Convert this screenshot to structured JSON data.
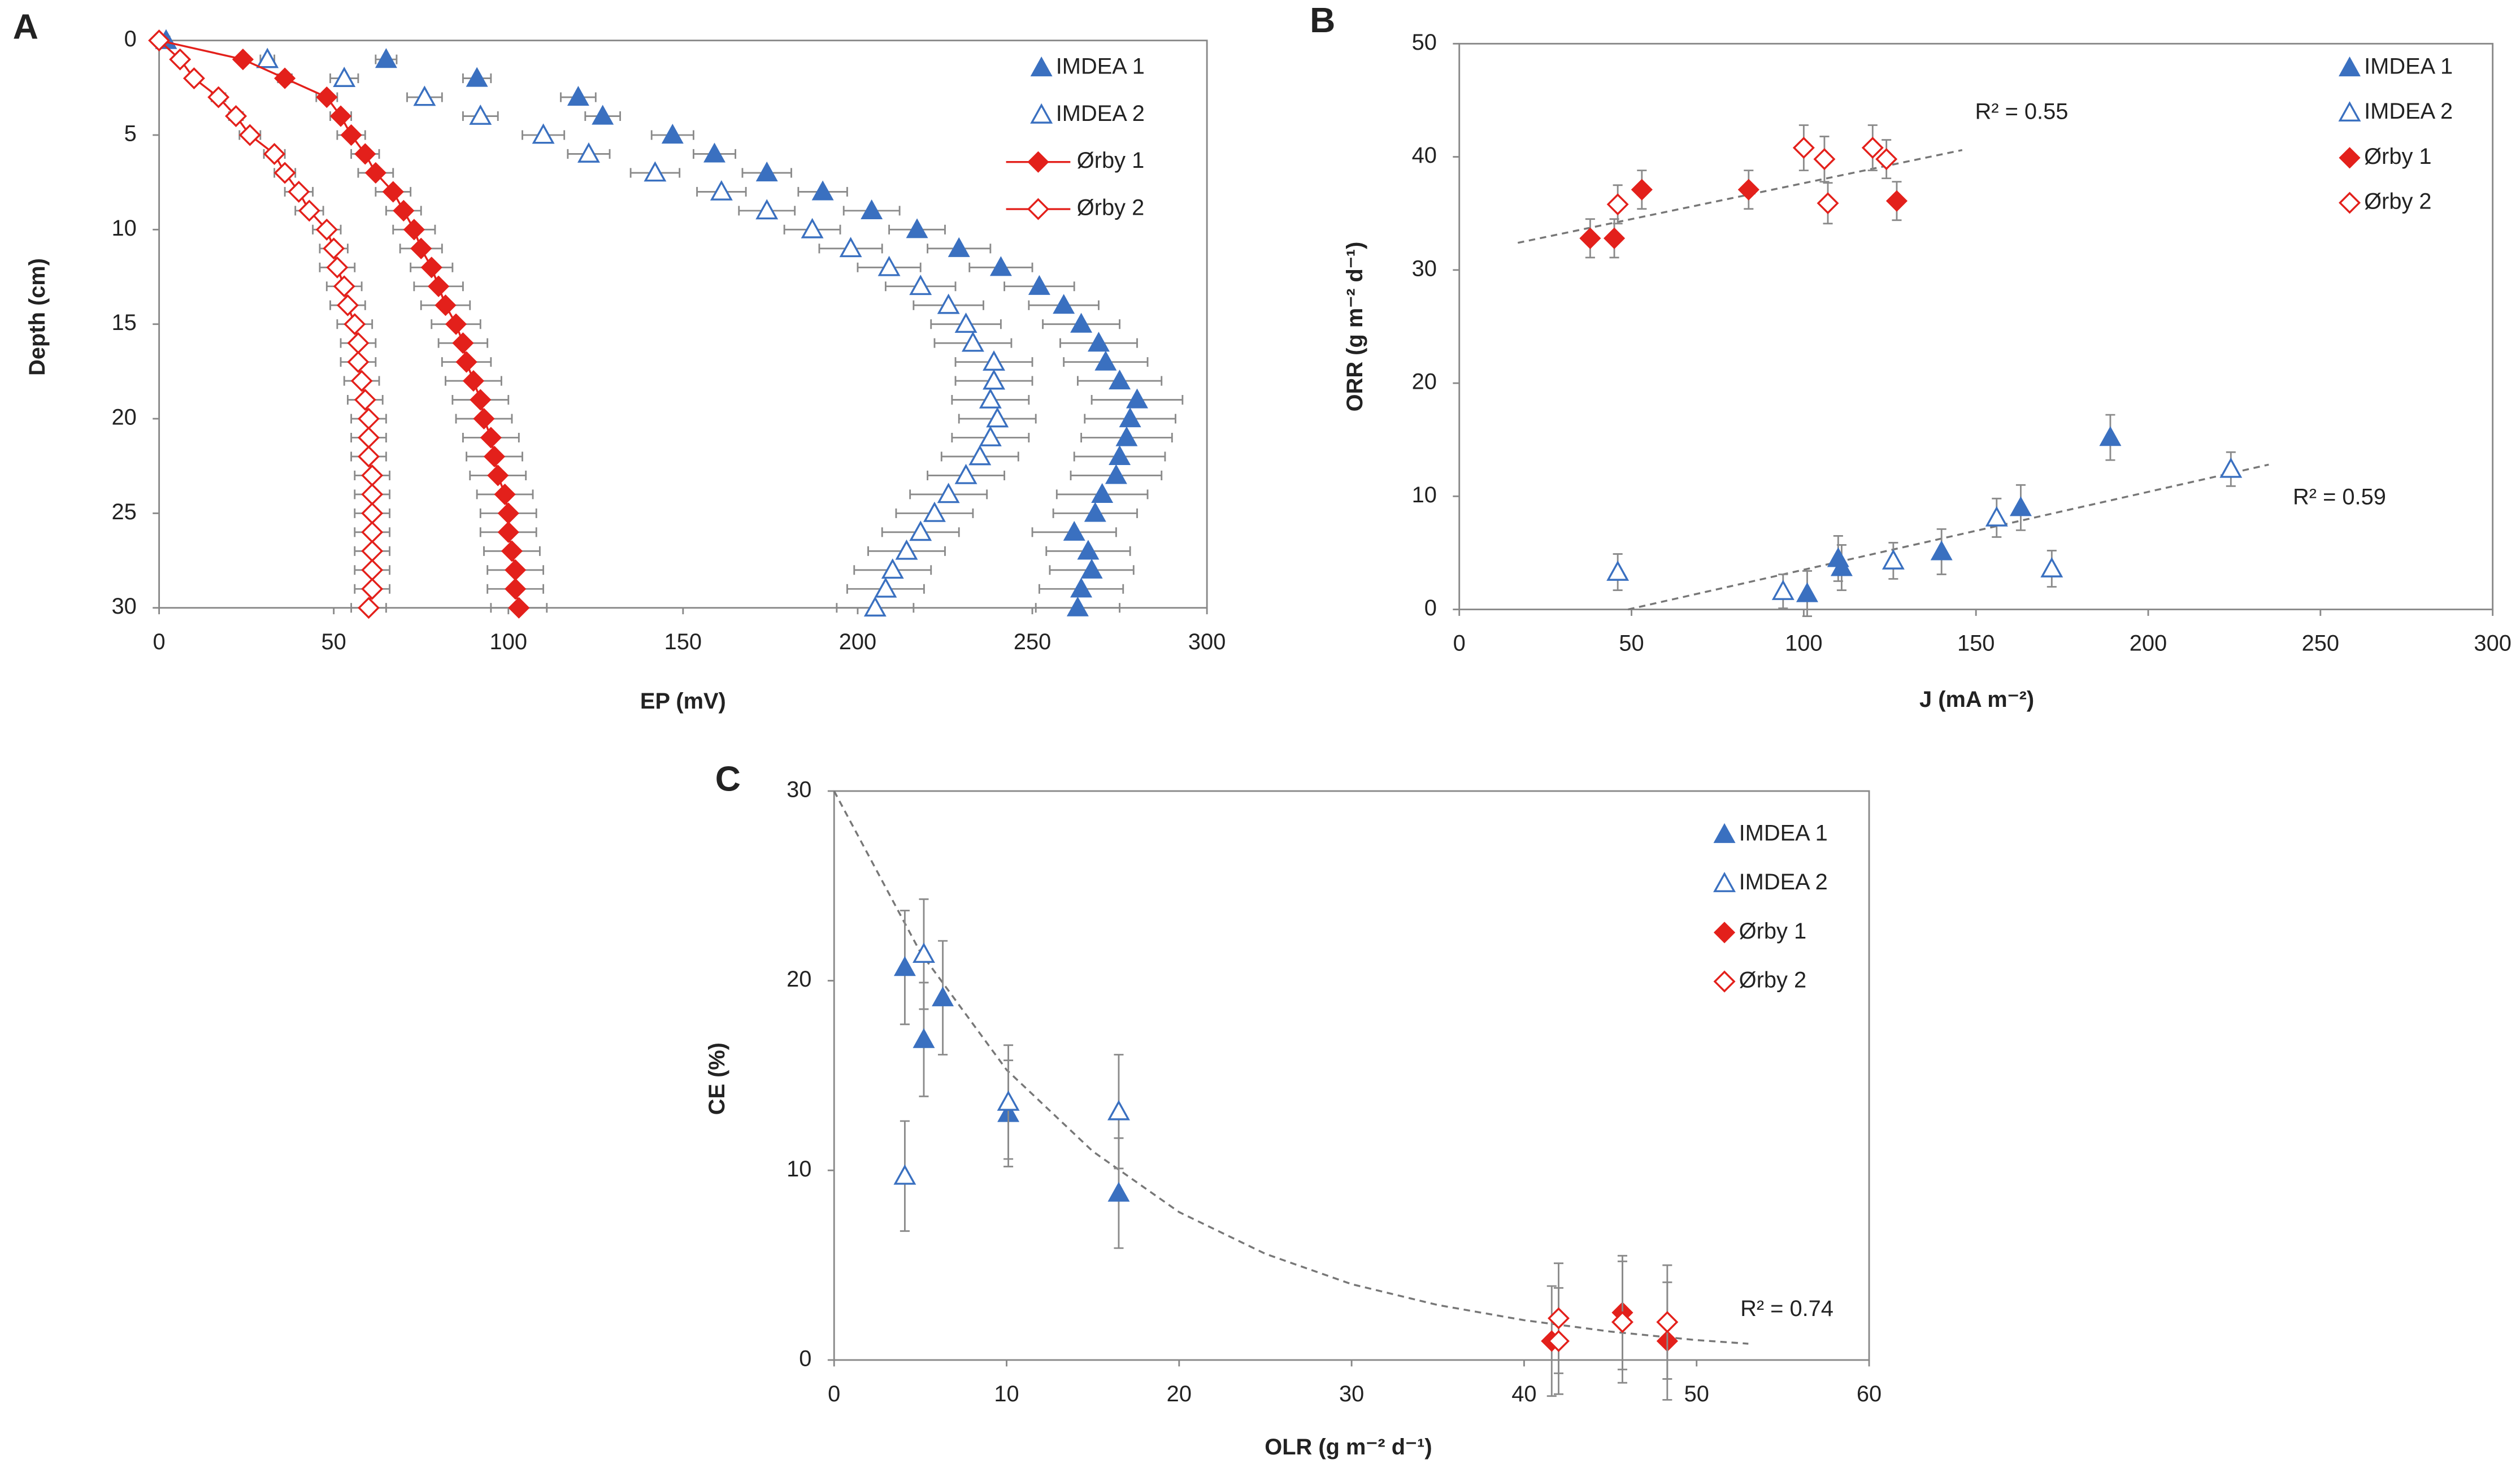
{
  "chart_data": [
    {
      "type": "scatter",
      "panel": "A",
      "xlabel": "EP (mV)",
      "ylabel": "Depth (cm)",
      "xlim": [
        0,
        300
      ],
      "xticks": [
        0,
        50,
        100,
        150,
        200,
        250,
        300
      ],
      "ylim": [
        0,
        30
      ],
      "yticks": [
        0,
        5,
        10,
        15,
        20,
        25,
        30
      ],
      "y_inverted": true,
      "legend": "upper right",
      "series": [
        {
          "name": "IMDEA 1",
          "color": "#3a70c0",
          "marker": "triangle",
          "x": [
            2,
            65,
            91,
            120,
            127,
            147,
            159,
            174,
            190,
            204,
            217,
            229,
            241,
            252,
            259,
            264,
            269,
            271,
            275,
            280,
            278,
            277,
            275,
            274,
            270,
            268,
            262,
            266,
            267,
            264,
            263
          ],
          "y": [
            0,
            1,
            2,
            3,
            4,
            5,
            6,
            7,
            8,
            9,
            10,
            11,
            12,
            13,
            14,
            15,
            16,
            17,
            18,
            19,
            20,
            21,
            22,
            23,
            24,
            25,
            26,
            27,
            28,
            29,
            30
          ],
          "xerr": [
            1,
            3,
            4,
            5,
            5,
            6,
            6,
            7,
            7,
            8,
            8,
            9,
            9,
            10,
            10,
            11,
            11,
            12,
            12,
            13,
            13,
            13,
            13,
            13,
            13,
            12,
            12,
            12,
            12,
            12,
            12
          ]
        },
        {
          "name": "IMDEA 2",
          "color": "#3a70c0",
          "marker": "triangle-open",
          "x": [
            31,
            53,
            76,
            92,
            110,
            123,
            142,
            161,
            174,
            187,
            198,
            209,
            218,
            226,
            231,
            233,
            239,
            239,
            238,
            240,
            238,
            235,
            231,
            226,
            222,
            218,
            214,
            210,
            208,
            205
          ],
          "y": [
            1,
            2,
            3,
            4,
            5,
            6,
            7,
            8,
            9,
            10,
            11,
            12,
            13,
            14,
            15,
            16,
            17,
            18,
            19,
            20,
            21,
            22,
            23,
            24,
            25,
            26,
            27,
            28,
            29,
            30
          ],
          "xerr": [
            2,
            4,
            5,
            5,
            6,
            6,
            7,
            7,
            8,
            8,
            9,
            9,
            10,
            10,
            10,
            11,
            11,
            11,
            11,
            11,
            11,
            11,
            11,
            11,
            11,
            11,
            11,
            11,
            11,
            11
          ]
        },
        {
          "name": "Ørby 1",
          "color": "#e3201b",
          "marker": "diamond",
          "line": true,
          "x": [
            0,
            24,
            36,
            48,
            52,
            55,
            59,
            62,
            67,
            70,
            73,
            75,
            78,
            80,
            82,
            85,
            87,
            88,
            90,
            92,
            93,
            95,
            96,
            97,
            99,
            100,
            100,
            101,
            102,
            102,
            103
          ],
          "y": [
            0,
            1,
            2,
            3,
            4,
            5,
            6,
            7,
            8,
            9,
            10,
            11,
            12,
            13,
            14,
            15,
            16,
            17,
            18,
            19,
            20,
            21,
            22,
            23,
            24,
            25,
            26,
            27,
            28,
            29,
            30
          ],
          "xerr": [
            0,
            1,
            2,
            3,
            3,
            4,
            4,
            5,
            5,
            5,
            6,
            6,
            6,
            7,
            7,
            7,
            7,
            7,
            8,
            8,
            8,
            8,
            8,
            8,
            8,
            8,
            8,
            8,
            8,
            8,
            8
          ]
        },
        {
          "name": "Ørby 2",
          "color": "#e3201b",
          "marker": "diamond-open",
          "line": true,
          "x": [
            0,
            6,
            10,
            17,
            22,
            26,
            33,
            36,
            40,
            43,
            48,
            50,
            51,
            53,
            54,
            56,
            57,
            57,
            58,
            59,
            60,
            60,
            60,
            61,
            61,
            61,
            61,
            61,
            61,
            61,
            60
          ],
          "y": [
            0,
            1,
            2,
            3,
            4,
            5,
            6,
            7,
            8,
            9,
            10,
            11,
            12,
            13,
            14,
            15,
            16,
            17,
            18,
            19,
            20,
            21,
            22,
            23,
            24,
            25,
            26,
            27,
            28,
            29,
            30
          ],
          "xerr": [
            0,
            1,
            1,
            2,
            2,
            3,
            3,
            3,
            4,
            4,
            4,
            4,
            5,
            5,
            5,
            5,
            5,
            5,
            5,
            5,
            5,
            5,
            5,
            5,
            5,
            5,
            5,
            5,
            5,
            5,
            5
          ]
        }
      ]
    },
    {
      "type": "scatter",
      "panel": "B",
      "xlabel": "J (mA m⁻²)",
      "ylabel": "ORR (g m⁻² d⁻¹)",
      "xlim": [
        0,
        300
      ],
      "xticks": [
        0,
        50,
        100,
        150,
        200,
        250,
        300
      ],
      "ylim": [
        0,
        50
      ],
      "yticks": [
        0,
        10,
        20,
        30,
        40,
        50
      ],
      "legend": "upper right",
      "series": [
        {
          "name": "IMDEA 1",
          "color": "#3a70c0",
          "marker": "triangle",
          "x": [
            101,
            110,
            111,
            140,
            163,
            189
          ],
          "y": [
            1.4,
            4.5,
            3.7,
            5.1,
            9,
            15.2
          ],
          "yerr": [
            2,
            2,
            2,
            2,
            2,
            2
          ]
        },
        {
          "name": "IMDEA 2",
          "color": "#3a70c0",
          "marker": "triangle-open",
          "x": [
            46,
            94,
            126,
            156,
            172,
            224
          ],
          "y": [
            3.3,
            1.6,
            4.3,
            8.1,
            3.6,
            12.4
          ],
          "yerr": [
            1.6,
            1.5,
            1.6,
            1.7,
            1.6,
            1.5
          ]
        },
        {
          "name": "Ørby 1",
          "color": "#e3201b",
          "marker": "diamond",
          "x": [
            38,
            45,
            53,
            84,
            127
          ],
          "y": [
            32.8,
            32.8,
            37.1,
            37.1,
            36.1
          ],
          "yerr": [
            1.7,
            1.7,
            1.7,
            1.7,
            1.7
          ]
        },
        {
          "name": "Ørby 2",
          "color": "#e3201b",
          "marker": "diamond-open",
          "x": [
            46,
            100,
            106,
            107,
            120,
            124
          ],
          "y": [
            35.8,
            40.8,
            39.8,
            35.9,
            40.8,
            39.8
          ],
          "yerr": [
            1.7,
            2,
            2,
            1.8,
            2,
            1.7
          ]
        }
      ],
      "trendlines": [
        {
          "x": [
            17,
            146
          ],
          "y": [
            32.4,
            40.6
          ],
          "label": "R² = 0.55"
        },
        {
          "x": [
            49,
            235
          ],
          "y": [
            0,
            12.8
          ],
          "label": "R² = 0.59"
        }
      ]
    },
    {
      "type": "scatter",
      "panel": "C",
      "xlabel": "OLR (g m⁻² d⁻¹)",
      "ylabel": "CE (%)",
      "xlim": [
        0,
        60
      ],
      "xticks": [
        0,
        10,
        20,
        30,
        40,
        50,
        60
      ],
      "ylim": [
        0,
        30
      ],
      "yticks": [
        0,
        10,
        20,
        30
      ],
      "legend": "upper right",
      "series": [
        {
          "name": "IMDEA 1",
          "color": "#3a70c0",
          "marker": "triangle",
          "x": [
            4.1,
            5.2,
            6.3,
            10.1,
            16.5
          ],
          "y": [
            20.7,
            16.9,
            19.1,
            13.0,
            8.8
          ],
          "yerr": [
            3,
            3,
            3,
            2.8,
            2.9
          ]
        },
        {
          "name": "IMDEA 2",
          "color": "#3a70c0",
          "marker": "triangle-open",
          "x": [
            4.1,
            5.2,
            10.1,
            16.5
          ],
          "y": [
            9.7,
            21.4,
            13.6,
            13.1
          ],
          "yerr": [
            2.9,
            2.9,
            3,
            3
          ]
        },
        {
          "name": "Ørby 1",
          "color": "#e3201b",
          "marker": "diamond",
          "x": [
            41.6,
            45.7,
            48.3
          ],
          "y": [
            1.0,
            2.5,
            1.0
          ],
          "yerr": [
            2.9,
            3,
            3.1
          ]
        },
        {
          "name": "Ørby 2",
          "color": "#e3201b",
          "marker": "diamond-open",
          "x": [
            42.0,
            42.0,
            45.7,
            48.3
          ],
          "y": [
            2.2,
            1.0,
            2.0,
            2.0
          ],
          "yerr": [
            2.9,
            2.8,
            3.2,
            3
          ]
        }
      ],
      "trendlines": [
        {
          "x": [
            0,
            5,
            10,
            15,
            20,
            25,
            30,
            35,
            40,
            45,
            50,
            53
          ],
          "y": [
            30,
            21.5,
            15.3,
            11.0,
            7.8,
            5.6,
            4.0,
            2.9,
            2.1,
            1.5,
            1.05,
            0.86
          ],
          "label": "R² = 0.74"
        }
      ]
    }
  ]
}
